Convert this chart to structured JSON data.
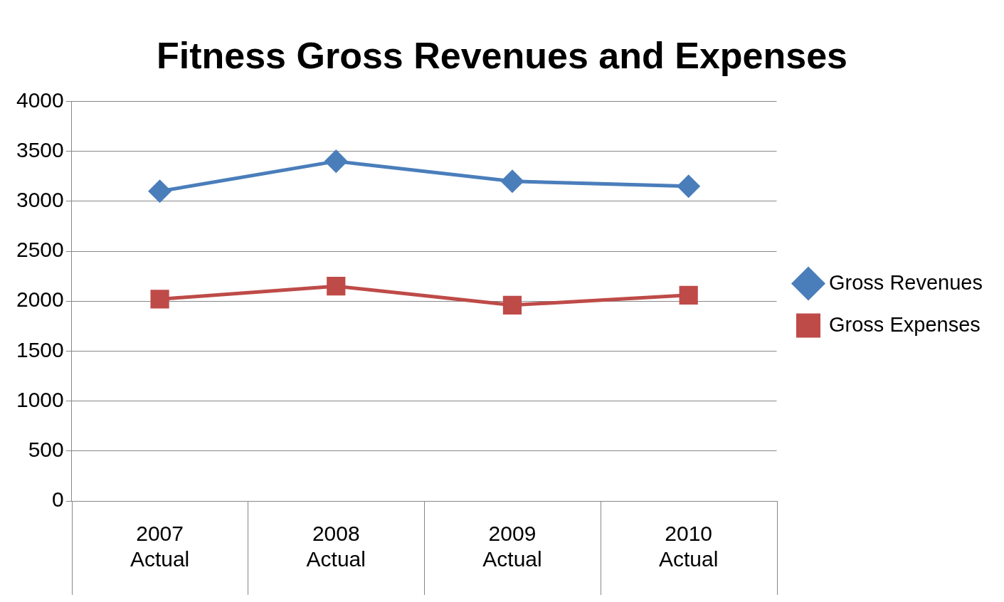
{
  "chart_data": {
    "type": "line",
    "title": "Fitness Gross Revenues and Expenses",
    "categories": [
      "2007 Actual",
      "2008 Actual",
      "2009 Actual",
      "2010 Actual"
    ],
    "series": [
      {
        "name": "Gross Revenues",
        "color": "#4a7ebb",
        "marker": "diamond",
        "values": [
          3100,
          3400,
          3200,
          3150
        ]
      },
      {
        "name": "Gross Expenses",
        "color": "#be4b48",
        "marker": "square",
        "values": [
          2020,
          2150,
          1960,
          2060
        ]
      }
    ],
    "ylim": [
      0,
      4000
    ],
    "yticks": [
      0,
      500,
      1000,
      1500,
      2000,
      2500,
      3000,
      3500,
      4000
    ],
    "grid": "y",
    "legend": "right"
  }
}
